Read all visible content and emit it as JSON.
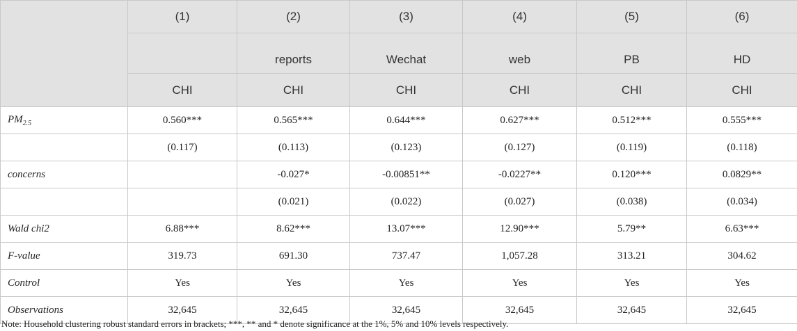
{
  "header": {
    "numbers": [
      "(1)",
      "(2)",
      "(3)",
      "(4)",
      "(5)",
      "(6)"
    ],
    "labels": [
      "",
      "reports",
      "Wechat",
      "web",
      "PB",
      "HD"
    ],
    "depvar": [
      "CHI",
      "CHI",
      "CHI",
      "CHI",
      "CHI",
      "CHI"
    ]
  },
  "rows": {
    "pm25": {
      "label": "PM",
      "label_sub": "2.5",
      "coef": [
        "0.560***",
        "0.565***",
        "0.644***",
        "0.627***",
        "0.512***",
        "0.555***"
      ],
      "se": [
        "(0.117)",
        "(0.113)",
        "(0.123)",
        "(0.127)",
        "(0.119)",
        "(0.118)"
      ]
    },
    "concerns": {
      "label": "concerns",
      "coef": [
        "",
        "-0.027*",
        "-0.00851**",
        "-0.0227**",
        "0.120***",
        "0.0829**"
      ],
      "se": [
        "",
        "(0.021)",
        "(0.022)",
        "(0.027)",
        "(0.038)",
        "(0.034)"
      ]
    },
    "wald": {
      "label": "Wald chi2",
      "values": [
        "6.88***",
        "8.62***",
        "13.07***",
        "12.90***",
        "5.79**",
        "6.63***"
      ]
    },
    "fvalue": {
      "label": "F-value",
      "values": [
        "319.73",
        "691.30",
        "737.47",
        "1,057.28",
        "313.21",
        "304.62"
      ]
    },
    "control": {
      "label": "Control",
      "values": [
        "Yes",
        "Yes",
        "Yes",
        "Yes",
        "Yes",
        "Yes"
      ]
    },
    "obs": {
      "label": "Observations",
      "values": [
        "32,645",
        "32,645",
        "32,645",
        "32,645",
        "32,645",
        "32,645"
      ]
    }
  },
  "note": "Note: Household clustering robust standard errors in brackets; ***, ** and * denote significance at the 1%, 5% and 10% levels respectively."
}
